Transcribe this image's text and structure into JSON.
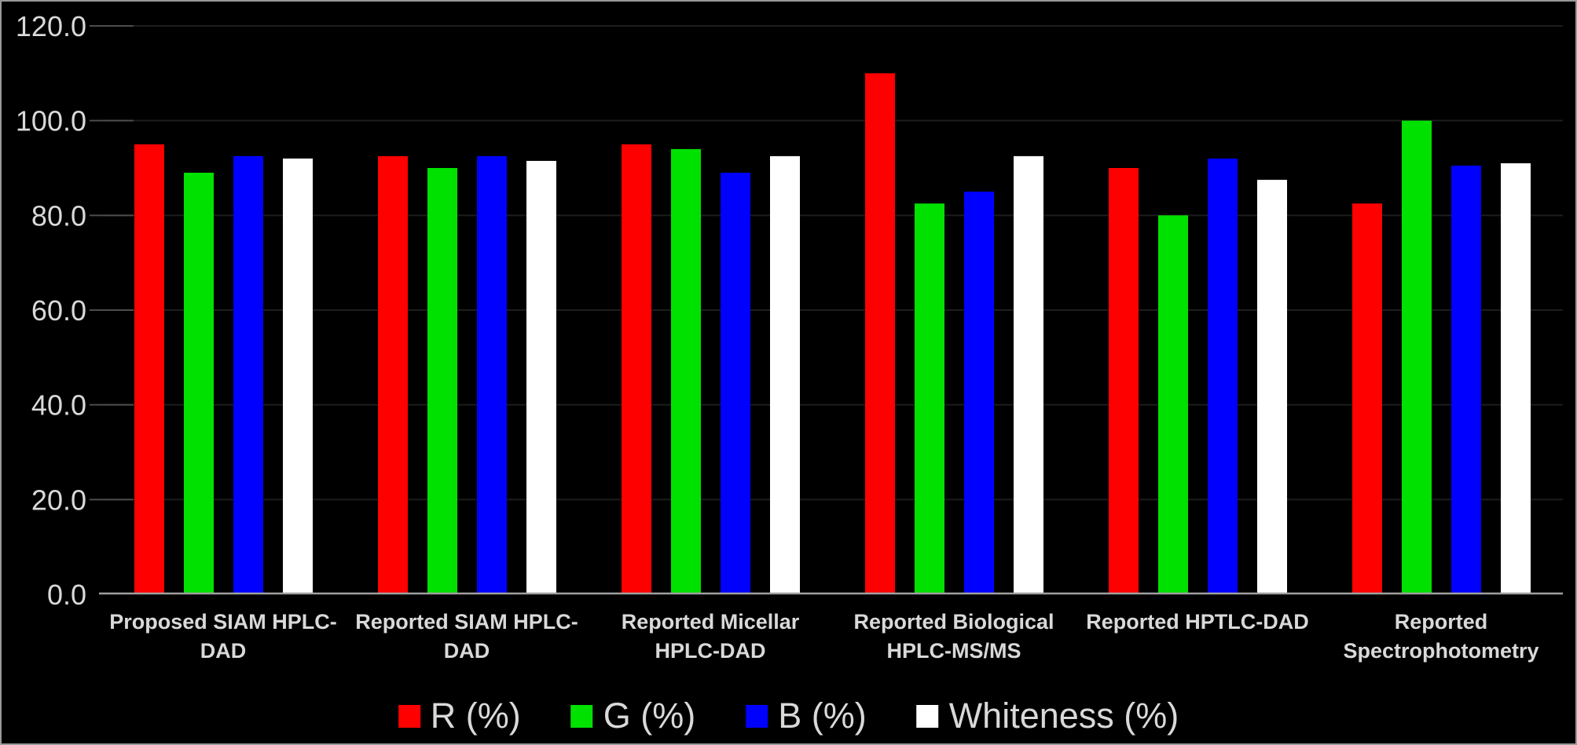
{
  "chart_data": {
    "type": "bar",
    "title": "",
    "xlabel": "",
    "ylabel": "",
    "background_color": "#000000",
    "axis_line_color": "#a0a0a0",
    "gridline_color": "#1d1d1d",
    "tick_mark_color": "#4d4d4d",
    "tick_label_color": "#d9d9d9",
    "grid": "horizontal gridlines, subtle dark gray on black",
    "legend_position": "bottom-center",
    "ylim": [
      0,
      120
    ],
    "ytick_step": 20,
    "ytick_labels": [
      "0.0",
      "20.0",
      "40.0",
      "60.0",
      "80.0",
      "100.0",
      "120.0"
    ],
    "categories": [
      "Proposed SIAM HPLC-DAD",
      "Reported SIAM HPLC-DAD",
      "Reported Micellar HPLC-DAD",
      "Reported Biological HPLC-MS/MS",
      "Reported HPTLC-DAD",
      "Reported Spectrophotometry"
    ],
    "category_label_lines": [
      [
        "Proposed SIAM HPLC-",
        "DAD"
      ],
      [
        "Reported SIAM HPLC-",
        "DAD"
      ],
      [
        "Reported Micellar",
        "HPLC-DAD"
      ],
      [
        "Reported Biological",
        "HPLC-MS/MS"
      ],
      [
        "Reported HPTLC-DAD"
      ],
      [
        "Reported",
        "Spectrophotometry"
      ]
    ],
    "series": [
      {
        "name": "R (%)",
        "color": "#ff0000",
        "values": [
          95.0,
          92.5,
          95.0,
          110.0,
          90.0,
          82.5
        ]
      },
      {
        "name": "G (%)",
        "color": "#00e100",
        "values": [
          89.0,
          90.0,
          94.0,
          82.5,
          80.0,
          100.0
        ]
      },
      {
        "name": "B (%)",
        "color": "#0000ff",
        "values": [
          92.5,
          92.5,
          89.0,
          85.0,
          92.0,
          90.5
        ]
      },
      {
        "name": "Whiteness (%)",
        "color": "#ffffff",
        "values": [
          92.0,
          91.5,
          92.5,
          92.5,
          87.5,
          91.0
        ]
      }
    ]
  }
}
